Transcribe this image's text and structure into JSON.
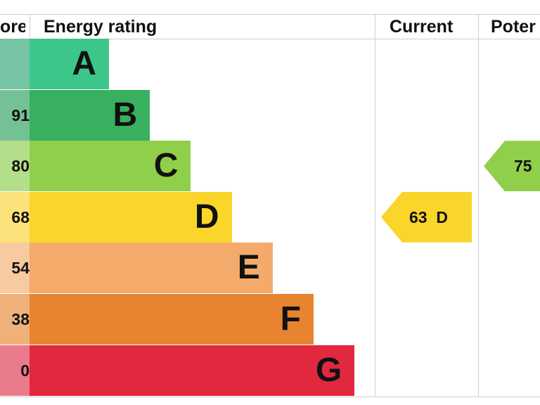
{
  "header": {
    "score": "ore",
    "rating": "Energy rating",
    "current": "Current",
    "potential": "Poter"
  },
  "chart_data": {
    "type": "bar",
    "categories": [
      "A",
      "B",
      "C",
      "D",
      "E",
      "F",
      "G"
    ],
    "score_labels": [
      "",
      "91",
      "80",
      "68",
      "54",
      "38",
      "0"
    ],
    "colors": [
      "#3cc68a",
      "#38b060",
      "#8fcf4a",
      "#fad52a",
      "#f3aa6a",
      "#e8832f",
      "#e1283f"
    ],
    "score_colors": [
      "#75c4a6",
      "#74c195",
      "#b4df8a",
      "#fbe27a",
      "#f7ca9f",
      "#f0b07a",
      "#ea7b8c"
    ],
    "current": {
      "value": 63,
      "label": "63  D",
      "band": "D",
      "color": "#fad52a"
    },
    "potential": {
      "value": 75,
      "label": "75",
      "band": "C",
      "color": "#8fcf4a"
    }
  }
}
